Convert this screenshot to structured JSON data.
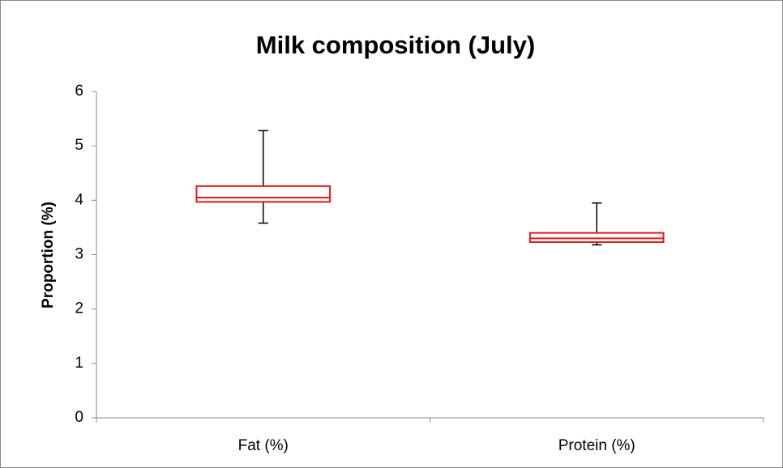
{
  "chart_data": {
    "type": "box",
    "title": "Milk composition (July)",
    "y_label": "Proportion (%)",
    "categories": [
      "Fat (%)",
      "Protein (%)"
    ],
    "min": [
      3.58,
      3.18
    ],
    "q1": [
      3.97,
      3.23
    ],
    "median": [
      4.05,
      3.3
    ],
    "q3": [
      4.26,
      3.4
    ],
    "max": [
      5.28,
      3.95
    ],
    "box_color": "#e0191c",
    "whisker_color": "#000000",
    "ylim": [
      0,
      6
    ],
    "yticks": [
      0,
      1,
      2,
      3,
      4,
      5,
      6
    ],
    "grid": false
  }
}
